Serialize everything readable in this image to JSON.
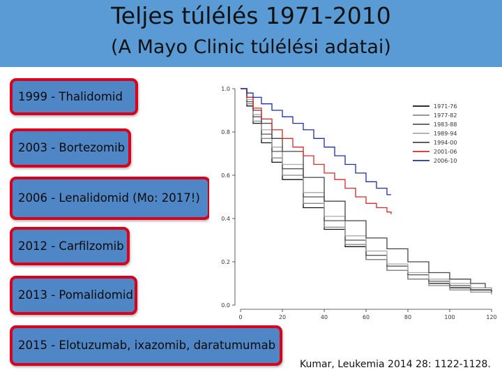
{
  "header": {
    "title": "Teljes túlélés 1971-2010",
    "subtitle": "(A Mayo Clinic túlélési adatai)",
    "background": "#5b9bd5"
  },
  "milestones": [
    {
      "label": "1999 - Thalidomid"
    },
    {
      "label": "2003 - Bortezomib"
    },
    {
      "label": "2006 - Lenalidomid (Mo: 2017!)"
    },
    {
      "label": "2012 - Carfilzomib"
    },
    {
      "label": "2013 - Pomalidomid"
    },
    {
      "label": "2015 - Elotuzumab, ixazomib, daratumumab"
    }
  ],
  "citation": "Kumar, Leukemia 2014 28: 1122-1128.",
  "chart_data": {
    "type": "line",
    "title": "",
    "xlabel": "",
    "ylabel": "",
    "xlim": [
      0,
      120
    ],
    "ylim": [
      0,
      1.0
    ],
    "xticks": [
      0,
      20,
      40,
      60,
      80,
      100,
      120
    ],
    "yticks": [
      "0.0",
      "0.2",
      "0.4",
      "0.6",
      "0.8",
      "1.0"
    ],
    "legend_position": "top-right",
    "grid": false,
    "series": [
      {
        "name": "1971-76",
        "color": "#111111",
        "x": [
          0,
          3,
          6,
          10,
          15,
          20,
          30,
          40,
          50,
          60,
          70,
          80,
          90,
          100,
          110,
          120
        ],
        "y": [
          1.0,
          0.92,
          0.84,
          0.75,
          0.66,
          0.58,
          0.45,
          0.35,
          0.27,
          0.21,
          0.16,
          0.12,
          0.1,
          0.08,
          0.07,
          0.06
        ]
      },
      {
        "name": "1977-82",
        "color": "#888888",
        "x": [
          0,
          3,
          6,
          10,
          15,
          20,
          30,
          40,
          50,
          60,
          70,
          80,
          90,
          100,
          110,
          120
        ],
        "y": [
          1.0,
          0.93,
          0.85,
          0.77,
          0.68,
          0.6,
          0.47,
          0.36,
          0.28,
          0.21,
          0.16,
          0.12,
          0.09,
          0.07,
          0.06,
          0.05
        ]
      },
      {
        "name": "1983-88",
        "color": "#555555",
        "x": [
          0,
          3,
          6,
          10,
          15,
          20,
          30,
          40,
          50,
          60,
          70,
          80,
          90,
          100,
          110,
          120
        ],
        "y": [
          1.0,
          0.94,
          0.87,
          0.79,
          0.71,
          0.63,
          0.5,
          0.39,
          0.3,
          0.23,
          0.18,
          0.14,
          0.11,
          0.09,
          0.08,
          0.07
        ]
      },
      {
        "name": "1989-94",
        "color": "#aaaaaa",
        "x": [
          0,
          3,
          6,
          10,
          15,
          20,
          30,
          40,
          50,
          60,
          70,
          80,
          90,
          100,
          110,
          120
        ],
        "y": [
          1.0,
          0.95,
          0.88,
          0.81,
          0.73,
          0.65,
          0.52,
          0.41,
          0.32,
          0.25,
          0.19,
          0.15,
          0.12,
          0.1,
          0.08,
          0.07
        ]
      },
      {
        "name": "1994-00",
        "color": "#444444",
        "x": [
          0,
          3,
          6,
          10,
          15,
          20,
          30,
          40,
          50,
          60,
          70,
          80,
          90,
          100,
          110,
          117
        ],
        "y": [
          1.0,
          0.96,
          0.9,
          0.84,
          0.77,
          0.71,
          0.59,
          0.48,
          0.39,
          0.31,
          0.26,
          0.2,
          0.15,
          0.12,
          0.1,
          0.08
        ]
      },
      {
        "name": "2001-06",
        "color": "#d62828",
        "x": [
          0,
          3,
          6,
          10,
          15,
          20,
          25,
          30,
          35,
          40,
          45,
          50,
          55,
          60,
          65,
          70,
          72
        ],
        "y": [
          1.0,
          0.96,
          0.91,
          0.86,
          0.81,
          0.77,
          0.73,
          0.69,
          0.65,
          0.61,
          0.58,
          0.54,
          0.5,
          0.47,
          0.45,
          0.43,
          0.42
        ]
      },
      {
        "name": "2006-10",
        "color": "#1c2fa6",
        "x": [
          0,
          3,
          6,
          10,
          15,
          20,
          25,
          30,
          35,
          40,
          45,
          50,
          55,
          60,
          65,
          70,
          72
        ],
        "y": [
          1.0,
          0.98,
          0.96,
          0.93,
          0.9,
          0.87,
          0.84,
          0.81,
          0.77,
          0.73,
          0.69,
          0.65,
          0.61,
          0.57,
          0.54,
          0.51,
          0.51
        ]
      }
    ]
  }
}
